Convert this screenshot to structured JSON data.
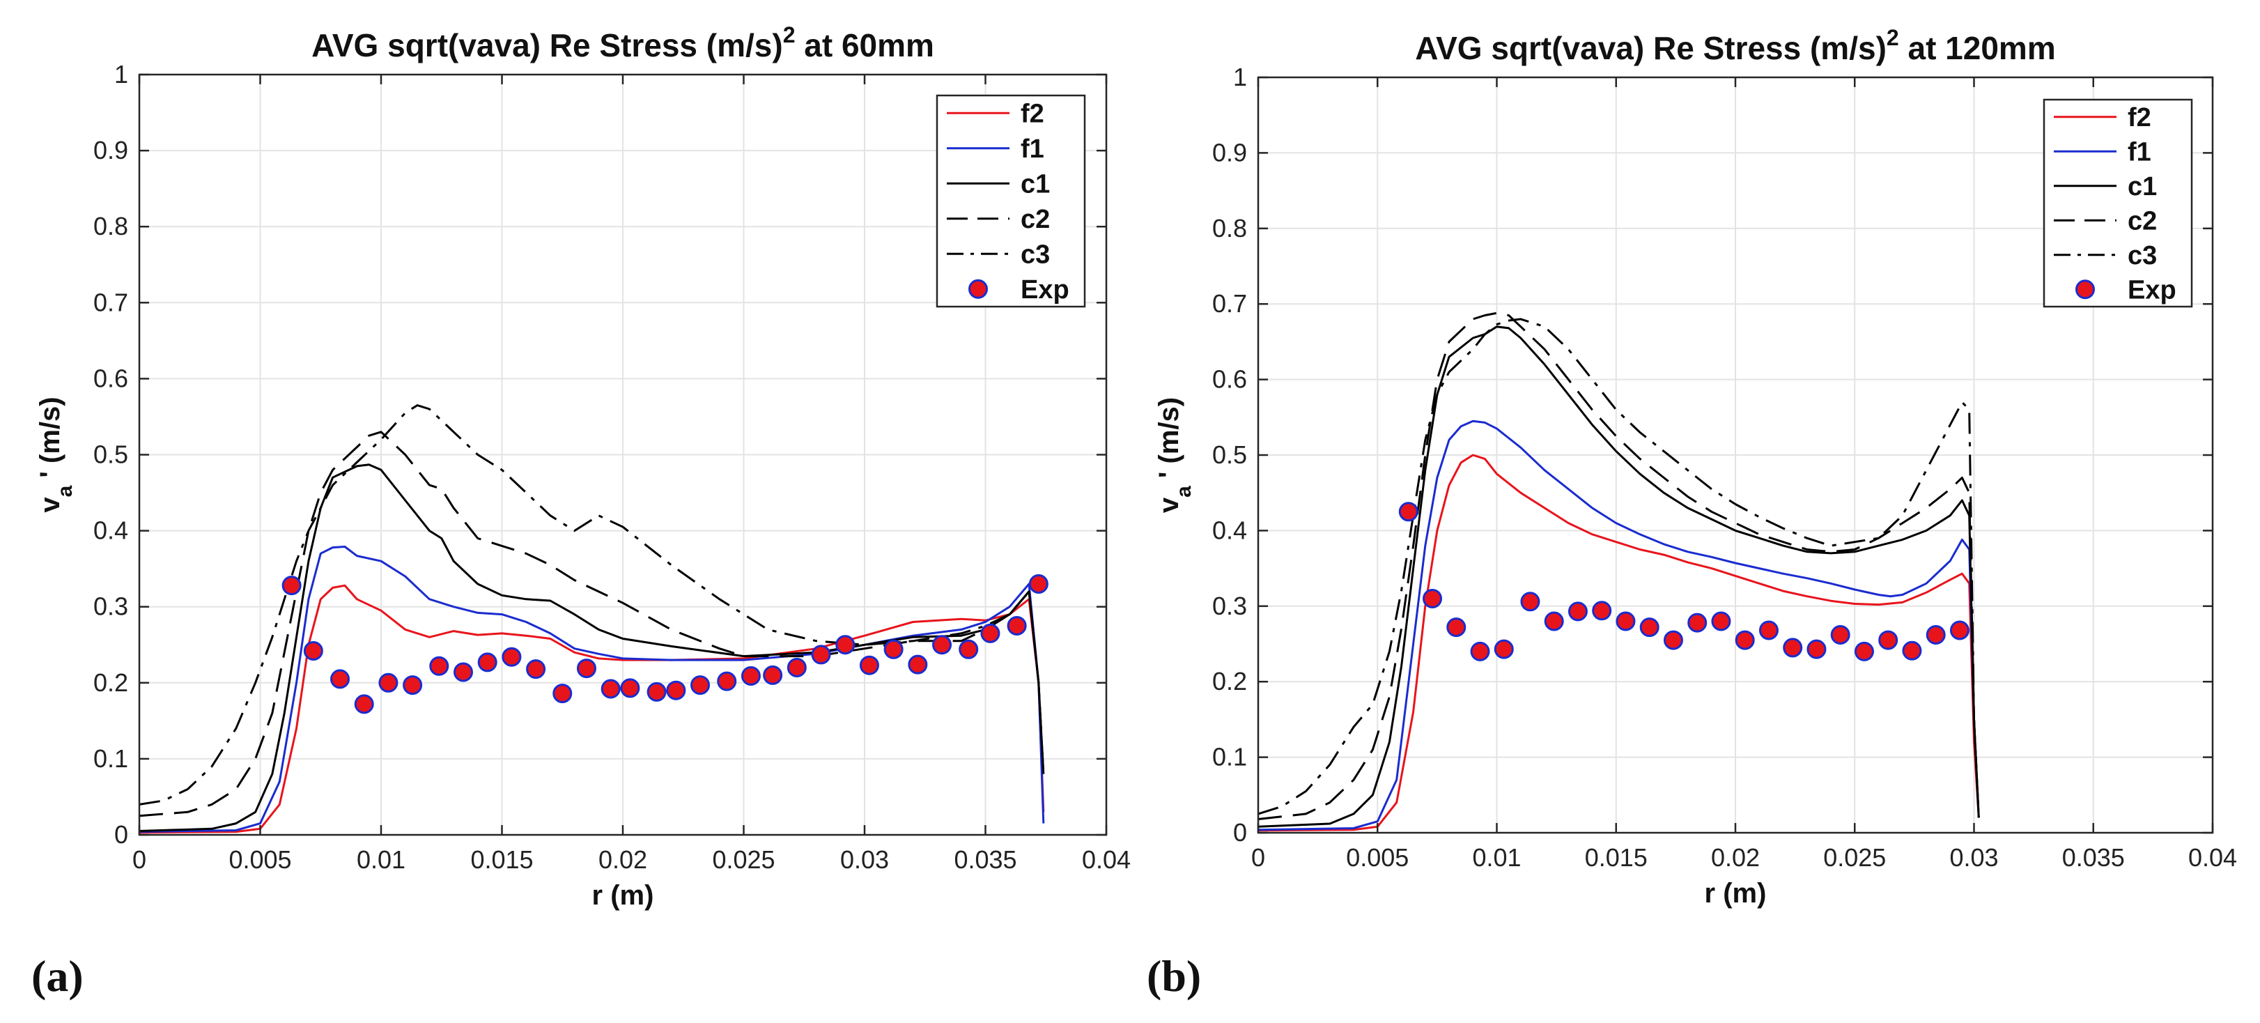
{
  "chart_data": [
    {
      "type": "line",
      "panel_label": "(a)",
      "title": "AVG sqrt(vava) Re Stress (m/s)",
      "title_sup": "2",
      "title_suffix": " at 60mm",
      "xlabel": "r (m)",
      "ylabel_main": "v",
      "ylabel_sub": "a",
      "ylabel_rest": " ' (m/s)",
      "xlim": [
        0,
        0.04
      ],
      "ylim": [
        0,
        1
      ],
      "xticks": [
        0,
        0.005,
        0.01,
        0.015,
        0.02,
        0.025,
        0.03,
        0.035,
        0.04
      ],
      "xtick_labels": [
        "0",
        "0.005",
        "0.01",
        "0.015",
        "0.02",
        "0.025",
        "0.03",
        "0.035",
        "0.04"
      ],
      "yticks": [
        0,
        0.1,
        0.2,
        0.3,
        0.4,
        0.5,
        0.6,
        0.7,
        0.8,
        0.9,
        1
      ],
      "ytick_labels": [
        "0",
        "0.1",
        "0.2",
        "0.3",
        "0.4",
        "0.5",
        "0.6",
        "0.7",
        "0.8",
        "0.9",
        "1"
      ],
      "grid": true,
      "legend_position": "top-right",
      "series": [
        {
          "name": "f2",
          "color": "#e8141c",
          "dash": "solid",
          "x": [
            0,
            0.004,
            0.005,
            0.0058,
            0.0065,
            0.007,
            0.0075,
            0.008,
            0.0085,
            0.009,
            0.01,
            0.011,
            0.012,
            0.013,
            0.014,
            0.015,
            0.016,
            0.017,
            0.018,
            0.019,
            0.02,
            0.022,
            0.025,
            0.028,
            0.03,
            0.032,
            0.034,
            0.035,
            0.036,
            0.0368,
            0.0372,
            0.0374
          ],
          "y": [
            0.003,
            0.004,
            0.008,
            0.04,
            0.14,
            0.25,
            0.31,
            0.325,
            0.328,
            0.31,
            0.295,
            0.27,
            0.26,
            0.268,
            0.263,
            0.265,
            0.262,
            0.258,
            0.24,
            0.232,
            0.23,
            0.23,
            0.232,
            0.245,
            0.262,
            0.28,
            0.284,
            0.282,
            0.29,
            0.31,
            0.2,
            0.03
          ]
        },
        {
          "name": "f1",
          "color": "#1a2ccf",
          "dash": "solid",
          "x": [
            0,
            0.004,
            0.005,
            0.0058,
            0.0065,
            0.007,
            0.0075,
            0.008,
            0.0085,
            0.009,
            0.01,
            0.011,
            0.012,
            0.013,
            0.014,
            0.015,
            0.016,
            0.017,
            0.018,
            0.019,
            0.02,
            0.022,
            0.025,
            0.028,
            0.03,
            0.032,
            0.034,
            0.035,
            0.036,
            0.0368,
            0.0372,
            0.0374
          ],
          "y": [
            0.004,
            0.006,
            0.015,
            0.07,
            0.2,
            0.31,
            0.37,
            0.378,
            0.379,
            0.367,
            0.36,
            0.34,
            0.31,
            0.3,
            0.292,
            0.29,
            0.28,
            0.265,
            0.245,
            0.238,
            0.232,
            0.23,
            0.23,
            0.238,
            0.25,
            0.262,
            0.27,
            0.28,
            0.3,
            0.33,
            0.2,
            0.015
          ]
        },
        {
          "name": "c1",
          "color": "#000000",
          "dash": "solid",
          "x": [
            0,
            0.003,
            0.004,
            0.0048,
            0.0055,
            0.006,
            0.0065,
            0.007,
            0.0075,
            0.008,
            0.009,
            0.0095,
            0.01,
            0.011,
            0.012,
            0.0125,
            0.013,
            0.014,
            0.015,
            0.016,
            0.017,
            0.018,
            0.019,
            0.02,
            0.022,
            0.025,
            0.028,
            0.03,
            0.032,
            0.034,
            0.035,
            0.036,
            0.0368,
            0.0372,
            0.0374
          ],
          "y": [
            0.005,
            0.008,
            0.015,
            0.03,
            0.08,
            0.16,
            0.26,
            0.36,
            0.43,
            0.47,
            0.485,
            0.487,
            0.48,
            0.44,
            0.4,
            0.39,
            0.36,
            0.33,
            0.315,
            0.31,
            0.308,
            0.29,
            0.27,
            0.258,
            0.248,
            0.235,
            0.24,
            0.25,
            0.26,
            0.262,
            0.27,
            0.29,
            0.32,
            0.2,
            0.08
          ]
        },
        {
          "name": "c2",
          "color": "#000000",
          "dash": "dashed",
          "x": [
            0,
            0.002,
            0.003,
            0.004,
            0.0048,
            0.0055,
            0.006,
            0.0065,
            0.007,
            0.0075,
            0.008,
            0.009,
            0.0095,
            0.01,
            0.011,
            0.012,
            0.0125,
            0.013,
            0.014,
            0.015,
            0.016,
            0.017,
            0.018,
            0.019,
            0.02,
            0.022,
            0.024,
            0.025,
            0.028,
            0.03,
            0.032,
            0.034,
            0.035,
            0.036,
            0.0368,
            0.0372,
            0.0374
          ],
          "y": [
            0.025,
            0.03,
            0.04,
            0.06,
            0.1,
            0.16,
            0.24,
            0.32,
            0.4,
            0.45,
            0.48,
            0.51,
            0.525,
            0.53,
            0.5,
            0.46,
            0.455,
            0.43,
            0.39,
            0.38,
            0.37,
            0.355,
            0.335,
            0.32,
            0.305,
            0.27,
            0.245,
            0.235,
            0.235,
            0.245,
            0.255,
            0.255,
            0.27,
            0.29,
            0.32,
            0.2,
            0.08
          ]
        },
        {
          "name": "c3",
          "color": "#000000",
          "dash": "dashdot",
          "x": [
            0,
            0.001,
            0.002,
            0.003,
            0.004,
            0.0048,
            0.0055,
            0.006,
            0.0065,
            0.007,
            0.0075,
            0.008,
            0.009,
            0.01,
            0.011,
            0.0115,
            0.012,
            0.013,
            0.014,
            0.015,
            0.016,
            0.017,
            0.018,
            0.019,
            0.02,
            0.021,
            0.022,
            0.024,
            0.026,
            0.028,
            0.03,
            0.032,
            0.034,
            0.035,
            0.036,
            0.0368,
            0.0372,
            0.0374
          ],
          "y": [
            0.04,
            0.045,
            0.06,
            0.09,
            0.14,
            0.2,
            0.26,
            0.31,
            0.36,
            0.4,
            0.43,
            0.46,
            0.49,
            0.52,
            0.555,
            0.565,
            0.56,
            0.53,
            0.5,
            0.48,
            0.45,
            0.42,
            0.4,
            0.42,
            0.405,
            0.38,
            0.355,
            0.31,
            0.27,
            0.255,
            0.25,
            0.255,
            0.265,
            0.275,
            0.29,
            0.32,
            0.2,
            0.08
          ]
        }
      ],
      "scatter": {
        "name": "Exp",
        "fill": "#e8141c",
        "edge": "#1a2ccf",
        "x": [
          0.0063,
          0.0072,
          0.0083,
          0.0093,
          0.0103,
          0.0113,
          0.0124,
          0.0134,
          0.0144,
          0.0154,
          0.0164,
          0.0175,
          0.0185,
          0.0195,
          0.0203,
          0.0214,
          0.0222,
          0.0232,
          0.0243,
          0.0253,
          0.0262,
          0.0272,
          0.0282,
          0.0292,
          0.0302,
          0.0312,
          0.0322,
          0.0332,
          0.0343,
          0.0352,
          0.0363,
          0.0372
        ],
        "y": [
          0.328,
          0.242,
          0.205,
          0.172,
          0.2,
          0.197,
          0.222,
          0.214,
          0.227,
          0.234,
          0.218,
          0.186,
          0.219,
          0.192,
          0.193,
          0.188,
          0.19,
          0.197,
          0.202,
          0.209,
          0.21,
          0.22,
          0.237,
          0.25,
          0.223,
          0.244,
          0.224,
          0.25,
          0.244,
          0.265,
          0.275,
          0.33
        ]
      }
    },
    {
      "type": "line",
      "panel_label": "(b)",
      "title": "AVG sqrt(vava) Re Stress (m/s)",
      "title_sup": "2",
      "title_suffix": " at 120mm",
      "xlabel": "r (m)",
      "ylabel_main": "v",
      "ylabel_sub": "a",
      "ylabel_rest": " ' (m/s)",
      "xlim": [
        0,
        0.04
      ],
      "ylim": [
        0,
        1
      ],
      "xticks": [
        0,
        0.005,
        0.01,
        0.015,
        0.02,
        0.025,
        0.03,
        0.035,
        0.04
      ],
      "xtick_labels": [
        "0",
        "0.005",
        "0.01",
        "0.015",
        "0.02",
        "0.025",
        "0.03",
        "0.035",
        "0.04"
      ],
      "yticks": [
        0,
        0.1,
        0.2,
        0.3,
        0.4,
        0.5,
        0.6,
        0.7,
        0.8,
        0.9,
        1
      ],
      "ytick_labels": [
        "0",
        "0.1",
        "0.2",
        "0.3",
        "0.4",
        "0.5",
        "0.6",
        "0.7",
        "0.8",
        "0.9",
        "1"
      ],
      "grid": true,
      "legend_position": "top-right",
      "series": [
        {
          "name": "f2",
          "color": "#e8141c",
          "dash": "solid",
          "x": [
            0,
            0.004,
            0.005,
            0.0058,
            0.0065,
            0.007,
            0.0075,
            0.008,
            0.0085,
            0.009,
            0.0095,
            0.01,
            0.011,
            0.012,
            0.013,
            0.014,
            0.015,
            0.016,
            0.017,
            0.018,
            0.019,
            0.02,
            0.021,
            0.022,
            0.023,
            0.024,
            0.025,
            0.026,
            0.027,
            0.028,
            0.029,
            0.0295,
            0.0298,
            0.03,
            0.0302
          ],
          "y": [
            0.003,
            0.004,
            0.008,
            0.04,
            0.16,
            0.3,
            0.4,
            0.46,
            0.49,
            0.5,
            0.495,
            0.475,
            0.45,
            0.43,
            0.41,
            0.395,
            0.385,
            0.375,
            0.368,
            0.358,
            0.35,
            0.34,
            0.33,
            0.32,
            0.313,
            0.307,
            0.303,
            0.302,
            0.305,
            0.318,
            0.335,
            0.343,
            0.33,
            0.12,
            0.02
          ]
        },
        {
          "name": "f1",
          "color": "#1a2ccf",
          "dash": "solid",
          "x": [
            0,
            0.004,
            0.005,
            0.0058,
            0.0065,
            0.007,
            0.0075,
            0.008,
            0.0085,
            0.009,
            0.0095,
            0.01,
            0.011,
            0.012,
            0.013,
            0.014,
            0.015,
            0.016,
            0.017,
            0.018,
            0.019,
            0.02,
            0.021,
            0.022,
            0.023,
            0.024,
            0.025,
            0.026,
            0.0265,
            0.027,
            0.028,
            0.029,
            0.0295,
            0.0298,
            0.03,
            0.0302
          ],
          "y": [
            0.004,
            0.006,
            0.015,
            0.07,
            0.25,
            0.38,
            0.47,
            0.52,
            0.538,
            0.545,
            0.543,
            0.535,
            0.51,
            0.48,
            0.455,
            0.43,
            0.41,
            0.395,
            0.382,
            0.372,
            0.365,
            0.357,
            0.35,
            0.343,
            0.337,
            0.33,
            0.322,
            0.315,
            0.313,
            0.315,
            0.33,
            0.36,
            0.388,
            0.375,
            0.15,
            0.02
          ]
        },
        {
          "name": "c1",
          "color": "#000000",
          "dash": "solid",
          "x": [
            0,
            0.003,
            0.004,
            0.0048,
            0.0055,
            0.006,
            0.0065,
            0.007,
            0.0075,
            0.008,
            0.009,
            0.0095,
            0.01,
            0.0105,
            0.011,
            0.012,
            0.013,
            0.014,
            0.015,
            0.016,
            0.017,
            0.018,
            0.019,
            0.02,
            0.021,
            0.022,
            0.023,
            0.024,
            0.025,
            0.026,
            0.027,
            0.028,
            0.029,
            0.0295,
            0.0298,
            0.03,
            0.0302
          ],
          "y": [
            0.008,
            0.012,
            0.025,
            0.05,
            0.12,
            0.22,
            0.35,
            0.48,
            0.58,
            0.63,
            0.655,
            0.66,
            0.67,
            0.668,
            0.655,
            0.62,
            0.58,
            0.54,
            0.505,
            0.475,
            0.45,
            0.43,
            0.415,
            0.4,
            0.39,
            0.38,
            0.372,
            0.37,
            0.372,
            0.38,
            0.388,
            0.4,
            0.42,
            0.44,
            0.42,
            0.15,
            0.02
          ]
        },
        {
          "name": "c2",
          "color": "#000000",
          "dash": "dashed",
          "x": [
            0,
            0.002,
            0.003,
            0.004,
            0.0048,
            0.0055,
            0.006,
            0.0065,
            0.007,
            0.0075,
            0.008,
            0.009,
            0.0095,
            0.01,
            0.0105,
            0.011,
            0.012,
            0.013,
            0.014,
            0.015,
            0.016,
            0.017,
            0.018,
            0.019,
            0.02,
            0.021,
            0.022,
            0.023,
            0.024,
            0.025,
            0.026,
            0.027,
            0.028,
            0.029,
            0.0295,
            0.0298,
            0.03,
            0.0302
          ],
          "y": [
            0.018,
            0.025,
            0.04,
            0.07,
            0.11,
            0.18,
            0.27,
            0.38,
            0.5,
            0.6,
            0.65,
            0.68,
            0.685,
            0.688,
            0.685,
            0.67,
            0.64,
            0.6,
            0.56,
            0.525,
            0.495,
            0.47,
            0.445,
            0.425,
            0.41,
            0.395,
            0.385,
            0.375,
            0.372,
            0.375,
            0.39,
            0.41,
            0.43,
            0.455,
            0.47,
            0.45,
            0.15,
            0.02
          ]
        },
        {
          "name": "c3",
          "color": "#000000",
          "dash": "dashdot",
          "x": [
            0,
            0.001,
            0.002,
            0.003,
            0.004,
            0.0048,
            0.0055,
            0.006,
            0.0065,
            0.007,
            0.0075,
            0.008,
            0.009,
            0.0095,
            0.01,
            0.0105,
            0.011,
            0.012,
            0.013,
            0.014,
            0.015,
            0.016,
            0.017,
            0.018,
            0.019,
            0.02,
            0.021,
            0.022,
            0.023,
            0.024,
            0.025,
            0.026,
            0.027,
            0.028,
            0.029,
            0.0295,
            0.0298,
            0.03,
            0.0302
          ],
          "y": [
            0.025,
            0.035,
            0.055,
            0.09,
            0.14,
            0.17,
            0.24,
            0.32,
            0.42,
            0.52,
            0.58,
            0.61,
            0.64,
            0.66,
            0.673,
            0.678,
            0.68,
            0.67,
            0.64,
            0.6,
            0.56,
            0.53,
            0.505,
            0.48,
            0.455,
            0.435,
            0.418,
            0.403,
            0.39,
            0.38,
            0.385,
            0.39,
            0.42,
            0.48,
            0.54,
            0.57,
            0.56,
            0.15,
            0.02
          ]
        }
      ],
      "scatter": {
        "name": "Exp",
        "fill": "#e8141c",
        "edge": "#1a2ccf",
        "x": [
          0.0063,
          0.0073,
          0.0083,
          0.0093,
          0.0103,
          0.0114,
          0.0124,
          0.0134,
          0.0144,
          0.0154,
          0.0164,
          0.0174,
          0.0184,
          0.0194,
          0.0204,
          0.0214,
          0.0224,
          0.0234,
          0.0244,
          0.0254,
          0.0264,
          0.0274,
          0.0284,
          0.0294
        ],
        "y": [
          0.425,
          0.31,
          0.272,
          0.24,
          0.243,
          0.306,
          0.28,
          0.293,
          0.294,
          0.28,
          0.272,
          0.255,
          0.278,
          0.28,
          0.255,
          0.268,
          0.245,
          0.243,
          0.262,
          0.24,
          0.255,
          0.241,
          0.262,
          0.268
        ]
      }
    }
  ]
}
